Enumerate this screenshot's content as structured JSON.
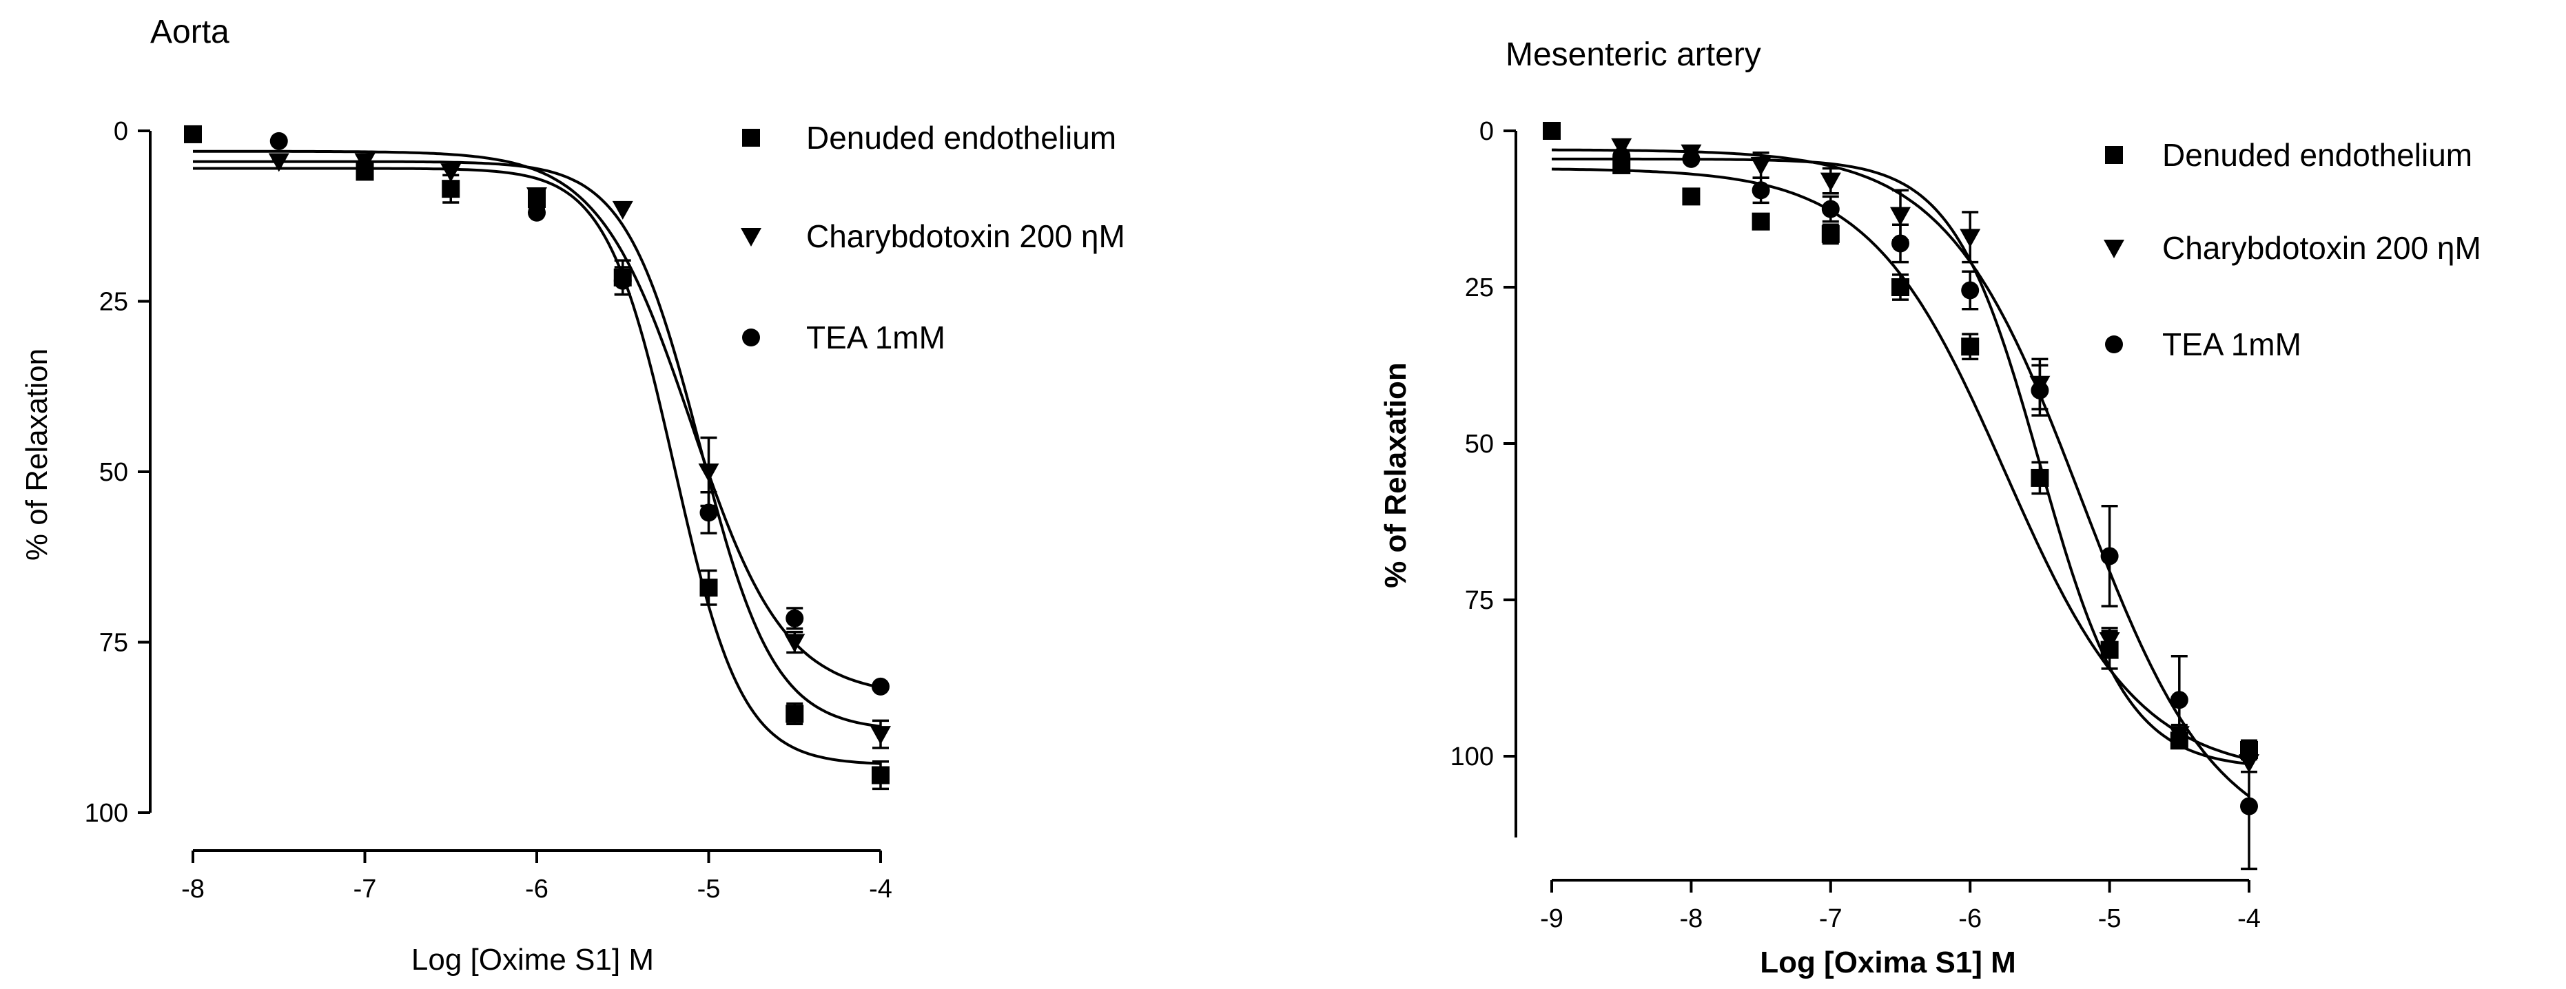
{
  "chart_data": [
    {
      "type": "scatter",
      "title": "Aorta",
      "xlabel": "Log [Oxime S1] M",
      "ylabel": "% of Relaxation",
      "xlim": [
        -8,
        -4
      ],
      "ylim": [
        0,
        100
      ],
      "y_inverted": true,
      "x_ticks": [
        -8,
        -7,
        -6,
        -5,
        -4
      ],
      "y_ticks": [
        0,
        25,
        50,
        75,
        100
      ],
      "legend_position": "top-right",
      "series": [
        {
          "name": "Denuded endothelium",
          "marker": "square",
          "x": [
            -8,
            -7,
            -6.5,
            -6,
            -5.5,
            -5,
            -4.5,
            -4
          ],
          "y": [
            0.5,
            6,
            8.5,
            10,
            21.5,
            67,
            85.5,
            94.5
          ],
          "err": [
            0,
            1,
            2,
            1.5,
            2.5,
            2.5,
            1.5,
            2
          ],
          "fit": {
            "bottom": 5.5,
            "top": 93,
            "log_ec50": -5.2,
            "hill": 2.2
          }
        },
        {
          "name": "Charybdotoxin 200 ηM",
          "marker": "triangle-down",
          "x": [
            -7.5,
            -7,
            -6.5,
            -6,
            -5.5,
            -5,
            -4.5,
            -4
          ],
          "y": [
            4.5,
            4.5,
            6,
            9.5,
            11.5,
            50,
            75,
            88.5
          ],
          "err": [
            0,
            0,
            0,
            0,
            0,
            5,
            1.5,
            2
          ],
          "fit": {
            "bottom": 4.5,
            "top": 88,
            "log_ec50": -5.05,
            "hill": 2.0
          }
        },
        {
          "name": "TEA 1mM",
          "marker": "circle",
          "x": [
            -7.5,
            -6,
            -5.5,
            -5,
            -4.5,
            -4
          ],
          "y": [
            1.5,
            12,
            22,
            56,
            71.5,
            81.5
          ],
          "err": [
            0,
            0,
            2,
            3,
            1.5,
            0
          ],
          "fit": {
            "bottom": 3,
            "top": 83,
            "log_ec50": -5.1,
            "hill": 1.6
          }
        }
      ]
    },
    {
      "type": "scatter",
      "title": "Mesenteric artery",
      "xlabel": "Log [Oxima S1] M",
      "ylabel": "% of Relaxation",
      "xlim": [
        -9,
        -4
      ],
      "ylim": [
        0,
        100
      ],
      "y_inverted": true,
      "x_ticks": [
        -9,
        -8,
        -7,
        -6,
        -5,
        -4
      ],
      "y_ticks": [
        0,
        25,
        50,
        75,
        100
      ],
      "legend_position": "top-right",
      "series": [
        {
          "name": "Denuded endothelium",
          "marker": "square",
          "x": [
            -9,
            -8.5,
            -8,
            -7.5,
            -7,
            -6.5,
            -6,
            -5.5,
            -5,
            -4.5,
            -4
          ],
          "y": [
            0,
            5.5,
            10.5,
            14.5,
            16.5,
            25,
            34.5,
            55.5,
            83,
            97.5,
            99
          ],
          "err": [
            0,
            0,
            0,
            0,
            1.5,
            2,
            2,
            2.5,
            3,
            1,
            1.5
          ],
          "fit": {
            "bottom": 6,
            "top": 103,
            "log_ec50": -5.75,
            "hill": 0.9
          }
        },
        {
          "name": "Charybdotoxin 200 ηM",
          "marker": "triangle-down",
          "x": [
            -8.5,
            -8,
            -7.5,
            -7,
            -6.5,
            -6,
            -5.5,
            -5,
            -4.5,
            -4
          ],
          "y": [
            2.5,
            3.5,
            5.5,
            8,
            13.5,
            17,
            40.5,
            81.5,
            96.5,
            101
          ],
          "err": [
            0,
            0,
            2,
            2,
            4,
            4,
            4,
            2,
            1.5,
            1.5
          ],
          "fit": {
            "bottom": 4.5,
            "top": 102,
            "log_ec50": -5.5,
            "hill": 1.4
          }
        },
        {
          "name": "TEA 1mM",
          "marker": "circle",
          "x": [
            -8.5,
            -8,
            -7.5,
            -7,
            -6.5,
            -6,
            -5.5,
            -5,
            -4.5,
            -4
          ],
          "y": [
            4,
            4.5,
            9.5,
            12.5,
            18,
            25.5,
            41.5,
            68,
            91,
            108
          ],
          "err": [
            0,
            0,
            2,
            2,
            3,
            3,
            4,
            8,
            7,
            10
          ],
          "fit": {
            "bottom": 3,
            "top": 115,
            "log_ec50": -5.2,
            "hill": 0.9
          }
        }
      ]
    }
  ]
}
